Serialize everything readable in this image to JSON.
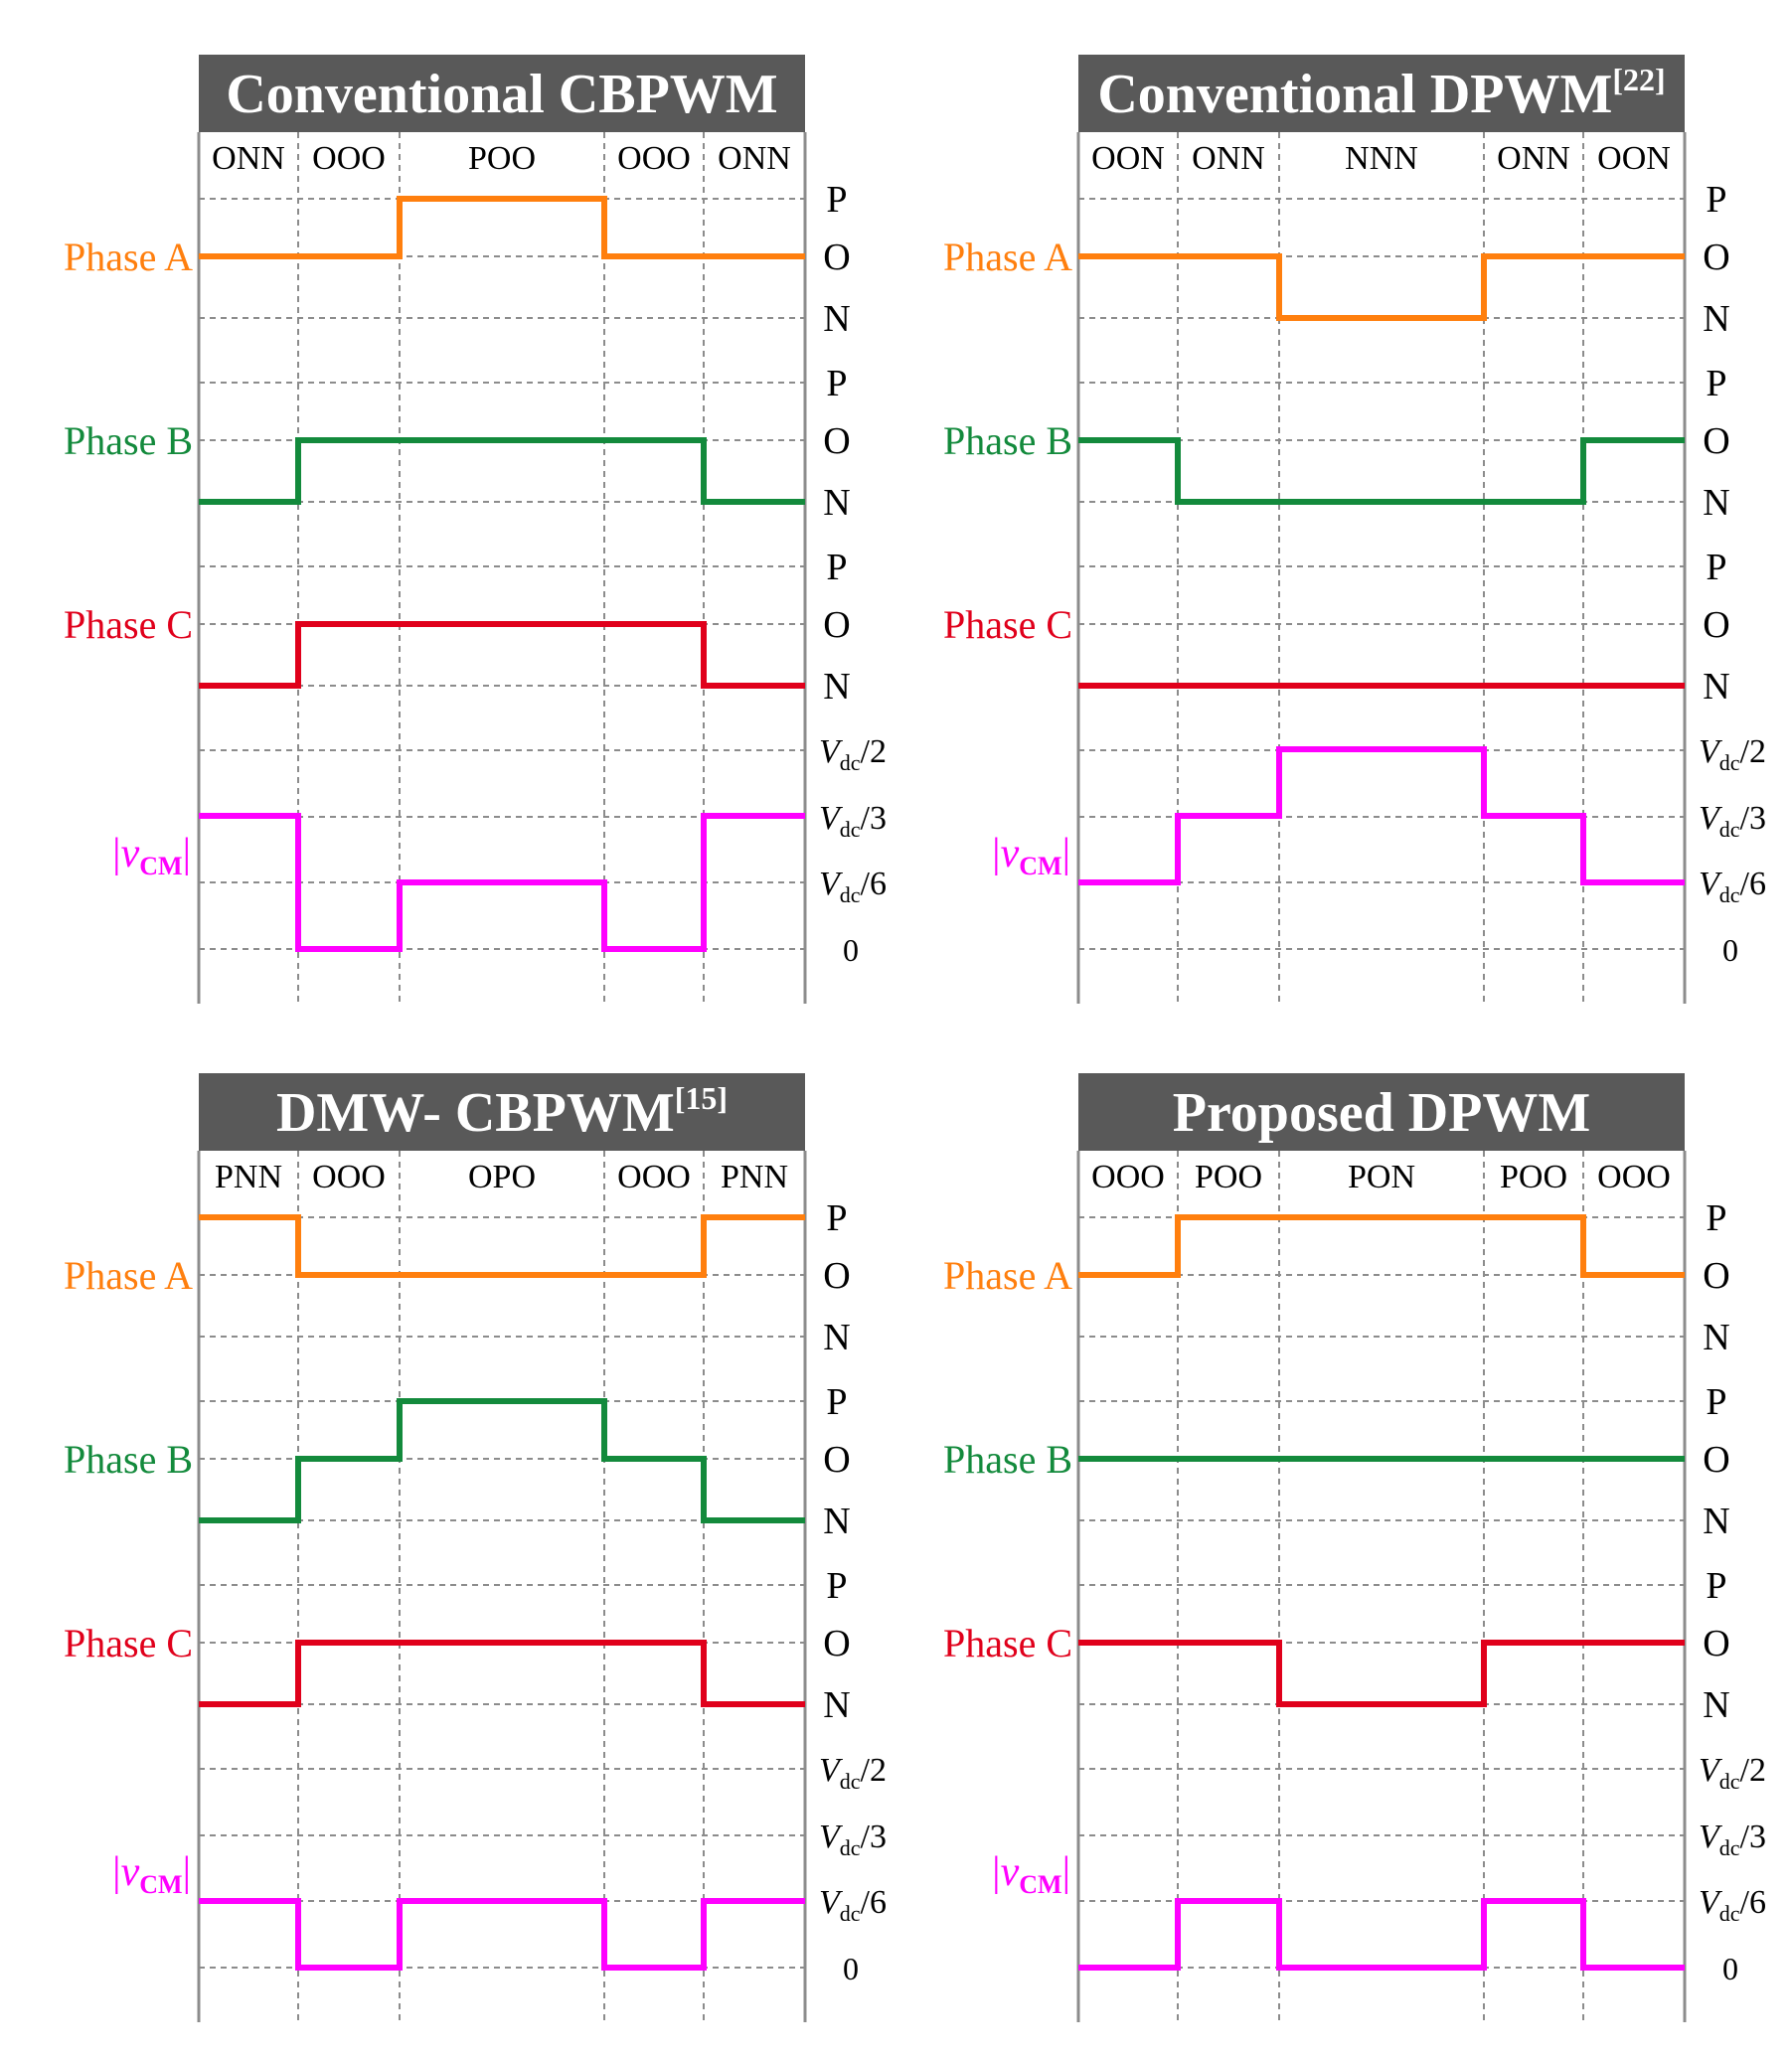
{
  "colors": {
    "phase_a": "#ff7f0e",
    "phase_b": "#138a3c",
    "phase_c": "#e0001b",
    "vcm": "#ff00ff",
    "title_bg": "#595959",
    "grid": "#8c8c8c"
  },
  "labels": {
    "phase_a": "Phase A",
    "phase_b": "Phase B",
    "phase_c": "Phase C",
    "vcm_italic": "v",
    "vcm_sub": "CM",
    "vcm_bar": "|",
    "p": "P",
    "o": "O",
    "n": "N",
    "vdc_italic": "V",
    "vdc_sub": "dc",
    "half": "/2",
    "third": "/3",
    "sixth": "/6",
    "zero": "0"
  },
  "chart_data": [
    {
      "type": "line",
      "title": "Conventional CBPWM",
      "title_ref": "",
      "segments": [
        "ONN",
        "OOO",
        "POO",
        "OOO",
        "ONN"
      ],
      "phase_a": [
        0,
        0,
        1,
        0,
        0
      ],
      "phase_b": [
        -1,
        0,
        0,
        0,
        -1
      ],
      "phase_c": [
        -1,
        0,
        0,
        0,
        -1
      ],
      "vcm_abs_sixths": [
        2,
        0,
        1,
        0,
        2
      ]
    },
    {
      "type": "line",
      "title": "Conventional DPWM",
      "title_ref": "[22]",
      "segments": [
        "OON",
        "ONN",
        "NNN",
        "ONN",
        "OON"
      ],
      "phase_a": [
        0,
        0,
        -1,
        0,
        0
      ],
      "phase_b": [
        0,
        -1,
        -1,
        -1,
        0
      ],
      "phase_c": [
        -1,
        -1,
        -1,
        -1,
        -1
      ],
      "vcm_abs_sixths": [
        1,
        2,
        3,
        2,
        1
      ]
    },
    {
      "type": "line",
      "title": "DMW- CBPWM",
      "title_ref": "[15]",
      "segments": [
        "PNN",
        "OOO",
        "OPO",
        "OOO",
        "PNN"
      ],
      "phase_a": [
        1,
        0,
        0,
        0,
        1
      ],
      "phase_b": [
        -1,
        0,
        1,
        0,
        -1
      ],
      "phase_c": [
        -1,
        0,
        0,
        0,
        -1
      ],
      "vcm_abs_sixths": [
        1,
        0,
        1,
        0,
        1
      ]
    },
    {
      "type": "line",
      "title": "Proposed DPWM",
      "title_ref": "",
      "segments": [
        "OOO",
        "POO",
        "PON",
        "POO",
        "OOO"
      ],
      "phase_a": [
        0,
        1,
        1,
        1,
        0
      ],
      "phase_b": [
        0,
        0,
        0,
        0,
        0
      ],
      "phase_c": [
        0,
        0,
        -1,
        0,
        0
      ],
      "vcm_abs_sixths": [
        0,
        1,
        0,
        1,
        0
      ]
    }
  ]
}
